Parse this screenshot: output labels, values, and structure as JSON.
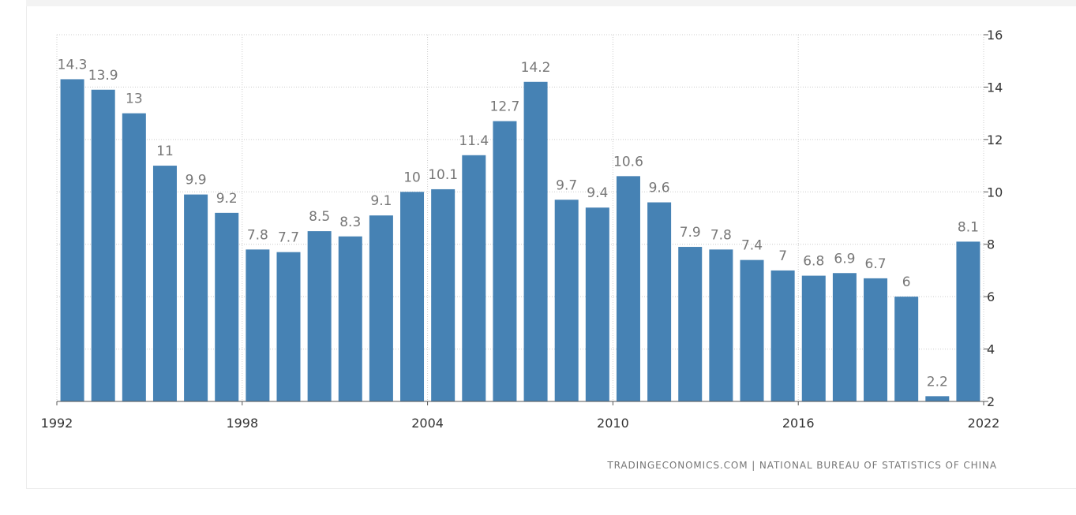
{
  "chart_data": {
    "type": "bar",
    "title": "",
    "xlabel": "",
    "ylabel": "",
    "categories": [
      "1992",
      "1993",
      "1994",
      "1995",
      "1996",
      "1997",
      "1998",
      "1999",
      "2000",
      "2001",
      "2002",
      "2003",
      "2004",
      "2005",
      "2006",
      "2007",
      "2008",
      "2009",
      "2010",
      "2011",
      "2012",
      "2013",
      "2014",
      "2015",
      "2016",
      "2017",
      "2018",
      "2019",
      "2020",
      "2021"
    ],
    "values": [
      14.3,
      13.9,
      13,
      11,
      9.9,
      9.2,
      7.8,
      7.7,
      8.5,
      8.3,
      9.1,
      10,
      10.1,
      11.4,
      12.7,
      14.2,
      9.7,
      9.4,
      10.6,
      9.6,
      7.9,
      7.8,
      7.4,
      7,
      6.8,
      6.9,
      6.7,
      6,
      2.2,
      8.1
    ],
    "data_labels": [
      "14.3",
      "13.9",
      "13",
      "11",
      "9.9",
      "9.2",
      "7.8",
      "7.7",
      "8.5",
      "8.3",
      "9.1",
      "10",
      "10.1",
      "11.4",
      "12.7",
      "14.2",
      "9.7",
      "9.4",
      "10.6",
      "9.6",
      "7.9",
      "7.8",
      "7.4",
      "7",
      "6.8",
      "6.9",
      "6.7",
      "6",
      "2.2",
      "8.1"
    ],
    "x_tick_labels": [
      "1992",
      "1998",
      "2004",
      "2010",
      "2016",
      "2022"
    ],
    "x_tick_values": [
      1992,
      1998,
      2004,
      2010,
      2016,
      2022
    ],
    "xlim": [
      1992,
      2022
    ],
    "y_tick_labels": [
      "2",
      "4",
      "6",
      "8",
      "10",
      "12",
      "14",
      "16"
    ],
    "y_tick_values": [
      2,
      4,
      6,
      8,
      10,
      12,
      14,
      16
    ],
    "ylim": [
      2,
      16
    ],
    "y_axis_side": "right",
    "grid": true,
    "bar_color": "#4682b4",
    "label_color": "#777777",
    "grid_color": "#cccccc"
  },
  "source_text": "TRADINGECONOMICS.COM | NATIONAL BUREAU OF STATISTICS OF CHINA"
}
